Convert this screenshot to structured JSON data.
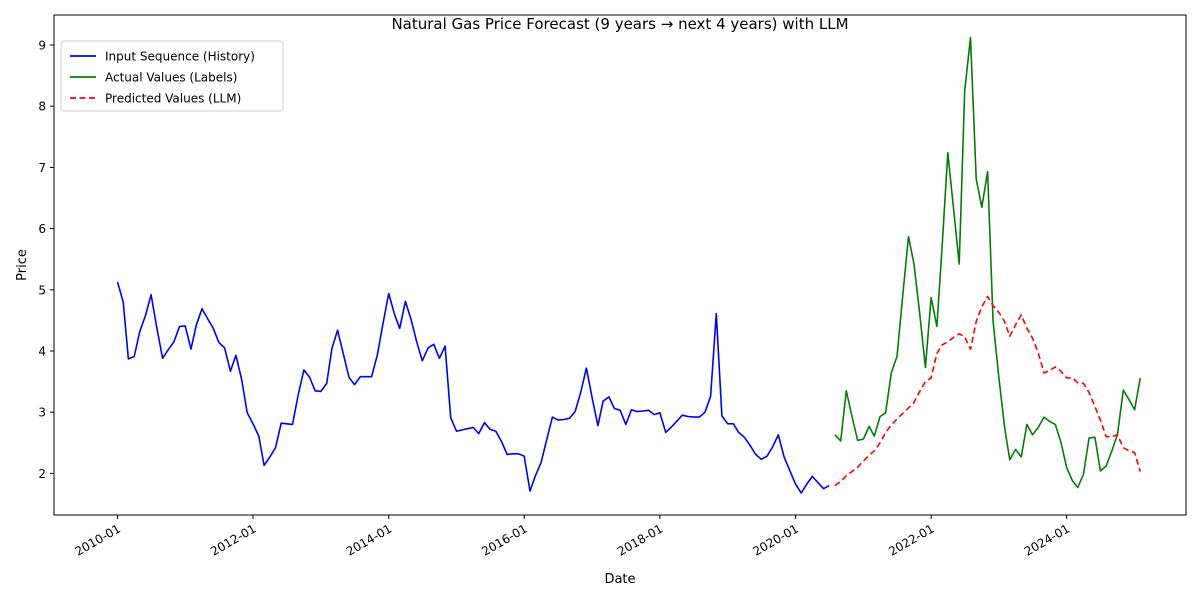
{
  "chart_data": {
    "type": "line",
    "title": "Natural Gas Price Forecast (9 years → next 4 years) with LLM",
    "xlabel": "Date",
    "ylabel": "Price",
    "x_type": "date",
    "xlim": [
      "2009-01-24",
      "2025-10-05"
    ],
    "ylim": [
      1.32,
      9.49
    ],
    "x_ticks": [
      "2010-01",
      "2012-01",
      "2014-01",
      "2016-01",
      "2018-01",
      "2020-01",
      "2022-01",
      "2024-01"
    ],
    "y_ticks": [
      2,
      3,
      4,
      5,
      6,
      7,
      8,
      9
    ],
    "grid": false,
    "legend_position": "top-left",
    "series": [
      {
        "name": "Input Sequence (History)",
        "color": "#0000ff",
        "dash": "solid",
        "dates": [
          "2010-01",
          "2010-02",
          "2010-03",
          "2010-04",
          "2010-05",
          "2010-06",
          "2010-07",
          "2010-08",
          "2010-09",
          "2010-10",
          "2010-11",
          "2010-12",
          "2011-01",
          "2011-02",
          "2011-03",
          "2011-04",
          "2011-05",
          "2011-06",
          "2011-07",
          "2011-08",
          "2011-09",
          "2011-10",
          "2011-11",
          "2011-12",
          "2012-01",
          "2012-02",
          "2012-03",
          "2012-04",
          "2012-05",
          "2012-06",
          "2012-07",
          "2012-08",
          "2012-09",
          "2012-10",
          "2012-11",
          "2012-12",
          "2013-01",
          "2013-02",
          "2013-03",
          "2013-04",
          "2013-05",
          "2013-06",
          "2013-07",
          "2013-08",
          "2013-09",
          "2013-10",
          "2013-11",
          "2013-12",
          "2014-01",
          "2014-02",
          "2014-03",
          "2014-04",
          "2014-05",
          "2014-06",
          "2014-07",
          "2014-08",
          "2014-09",
          "2014-10",
          "2014-11",
          "2014-12",
          "2015-01",
          "2015-02",
          "2015-03",
          "2015-04",
          "2015-05",
          "2015-06",
          "2015-07",
          "2015-08",
          "2015-09",
          "2015-10",
          "2015-11",
          "2015-12",
          "2016-01",
          "2016-02",
          "2016-03",
          "2016-04",
          "2016-05",
          "2016-06",
          "2016-07",
          "2016-08",
          "2016-09",
          "2016-10",
          "2016-11",
          "2016-12",
          "2017-01",
          "2017-02",
          "2017-03",
          "2017-04",
          "2017-05",
          "2017-06",
          "2017-07",
          "2017-08",
          "2017-09",
          "2017-10",
          "2017-11",
          "2017-12",
          "2018-01",
          "2018-02",
          "2018-03",
          "2018-04",
          "2018-05",
          "2018-06",
          "2018-07",
          "2018-08",
          "2018-09",
          "2018-10",
          "2018-11",
          "2018-12",
          "2019-01",
          "2019-02",
          "2019-03",
          "2019-04",
          "2019-05",
          "2019-06",
          "2019-07",
          "2019-08",
          "2019-09",
          "2019-10",
          "2019-11",
          "2019-12",
          "2020-01",
          "2020-02",
          "2020-03",
          "2020-04",
          "2020-05",
          "2020-06",
          "2020-07"
        ],
        "values": [
          5.13,
          4.8,
          3.87,
          3.91,
          4.32,
          4.58,
          4.92,
          4.38,
          3.88,
          4.02,
          4.15,
          4.4,
          4.41,
          4.03,
          4.42,
          4.69,
          4.53,
          4.37,
          4.14,
          4.05,
          3.67,
          3.93,
          3.53,
          2.99,
          2.81,
          2.61,
          2.13,
          2.27,
          2.42,
          2.82,
          2.81,
          2.8,
          3.29,
          3.69,
          3.57,
          3.35,
          3.34,
          3.47,
          4.04,
          4.34,
          3.96,
          3.57,
          3.45,
          3.58,
          3.58,
          3.58,
          3.94,
          4.44,
          4.94,
          4.6,
          4.37,
          4.81,
          4.52,
          4.15,
          3.84,
          4.05,
          4.11,
          3.88,
          4.08,
          2.91,
          2.69,
          2.71,
          2.73,
          2.75,
          2.65,
          2.83,
          2.72,
          2.69,
          2.52,
          2.31,
          2.32,
          2.32,
          2.28,
          1.71,
          1.96,
          2.18,
          2.55,
          2.92,
          2.87,
          2.88,
          2.9,
          3.01,
          3.33,
          3.72,
          3.23,
          2.78,
          3.18,
          3.25,
          3.06,
          3.03,
          2.8,
          3.04,
          3.01,
          3.02,
          3.03,
          2.96,
          2.99,
          2.67,
          2.75,
          2.85,
          2.95,
          2.93,
          2.92,
          2.92,
          3.0,
          3.26,
          4.61,
          2.94,
          2.81,
          2.81,
          2.67,
          2.59,
          2.46,
          2.31,
          2.23,
          2.28,
          2.44,
          2.63,
          2.27,
          2.05,
          1.83,
          1.68,
          1.82,
          1.95,
          1.85,
          1.75,
          1.8
        ]
      },
      {
        "name": "Actual Values (Labels)",
        "color": "#008000",
        "dash": "solid",
        "dates": [
          "2020-08",
          "2020-09",
          "2020-10",
          "2020-11",
          "2020-12",
          "2021-01",
          "2021-02",
          "2021-03",
          "2021-04",
          "2021-05",
          "2021-06",
          "2021-07",
          "2021-08",
          "2021-09",
          "2021-10",
          "2021-11",
          "2021-12",
          "2022-01",
          "2022-02",
          "2022-03",
          "2022-04",
          "2022-05",
          "2022-06",
          "2022-07",
          "2022-08",
          "2022-09",
          "2022-10",
          "2022-11",
          "2022-12",
          "2023-01",
          "2023-02",
          "2023-03",
          "2023-04",
          "2023-05",
          "2023-06",
          "2023-07",
          "2023-08",
          "2023-09",
          "2023-10",
          "2023-11",
          "2023-12",
          "2024-01",
          "2024-02",
          "2024-03",
          "2024-04",
          "2024-05",
          "2024-06",
          "2024-07",
          "2024-08",
          "2024-09",
          "2024-10",
          "2024-11",
          "2024-12",
          "2025-01",
          "2025-02"
        ],
        "values": [
          2.63,
          2.53,
          3.35,
          2.93,
          2.54,
          2.56,
          2.77,
          2.61,
          2.93,
          2.99,
          3.65,
          3.91,
          4.9,
          5.87,
          5.42,
          4.6,
          3.73,
          4.87,
          4.4,
          5.7,
          7.24,
          6.35,
          5.42,
          8.25,
          9.12,
          6.81,
          6.35,
          6.93,
          4.48,
          3.56,
          2.75,
          2.22,
          2.39,
          2.27,
          2.8,
          2.63,
          2.75,
          2.92,
          2.85,
          2.8,
          2.51,
          2.1,
          1.88,
          1.77,
          1.99,
          2.58,
          2.59,
          2.04,
          2.12,
          2.37,
          2.64,
          3.36,
          3.21,
          3.04,
          3.56
        ]
      },
      {
        "name": "Predicted Values (LLM)",
        "color": "#ff0000",
        "dash": "dashed",
        "dates": [
          "2020-08",
          "2020-09",
          "2020-10",
          "2020-11",
          "2020-12",
          "2021-01",
          "2021-02",
          "2021-03",
          "2021-04",
          "2021-05",
          "2021-06",
          "2021-07",
          "2021-08",
          "2021-09",
          "2021-10",
          "2021-11",
          "2021-12",
          "2022-01",
          "2022-02",
          "2022-03",
          "2022-04",
          "2022-05",
          "2022-06",
          "2022-07",
          "2022-08",
          "2022-09",
          "2022-10",
          "2022-11",
          "2022-12",
          "2023-01",
          "2023-02",
          "2023-03",
          "2023-04",
          "2023-05",
          "2023-06",
          "2023-07",
          "2023-08",
          "2023-09",
          "2023-10",
          "2023-11",
          "2023-12",
          "2024-01",
          "2024-02",
          "2024-03",
          "2024-04",
          "2024-05",
          "2024-06",
          "2024-07",
          "2024-08",
          "2024-09",
          "2024-10",
          "2024-11",
          "2024-12",
          "2025-01",
          "2025-02"
        ],
        "values": [
          1.8,
          1.87,
          1.96,
          2.03,
          2.1,
          2.2,
          2.29,
          2.37,
          2.5,
          2.67,
          2.79,
          2.89,
          2.98,
          3.07,
          3.16,
          3.34,
          3.5,
          3.56,
          3.96,
          4.1,
          4.15,
          4.22,
          4.28,
          4.23,
          4.03,
          4.48,
          4.72,
          4.89,
          4.74,
          4.63,
          4.48,
          4.24,
          4.43,
          4.59,
          4.37,
          4.21,
          3.97,
          3.64,
          3.68,
          3.74,
          3.67,
          3.56,
          3.56,
          3.48,
          3.47,
          3.32,
          3.09,
          2.87,
          2.6,
          2.6,
          2.63,
          2.42,
          2.37,
          2.34,
          2.03
        ]
      }
    ]
  }
}
